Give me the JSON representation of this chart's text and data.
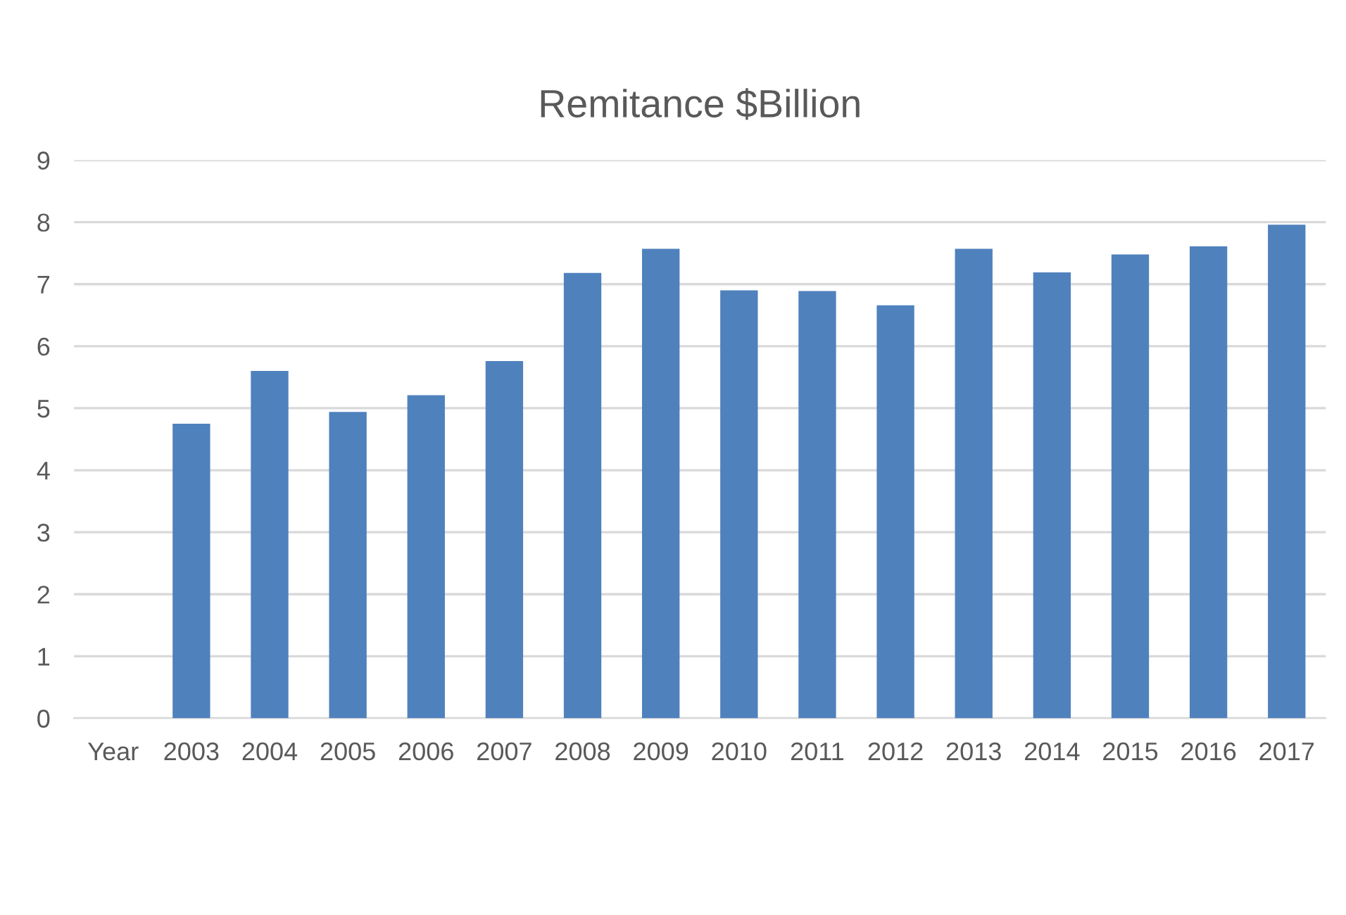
{
  "chart_data": {
    "type": "bar",
    "title": "Remitance $Billion",
    "categories": [
      "Year",
      "2003",
      "2004",
      "2005",
      "2006",
      "2007",
      "2008",
      "2009",
      "2010",
      "2011",
      "2012",
      "2013",
      "2014",
      "2015",
      "2016",
      "2017"
    ],
    "values": [
      null,
      4.75,
      5.6,
      4.94,
      5.21,
      5.76,
      7.18,
      7.57,
      6.9,
      6.89,
      6.66,
      7.57,
      7.19,
      7.48,
      7.61,
      7.96
    ],
    "color": "#4f81bd",
    "ylim": [
      0,
      9
    ],
    "yticks": [
      0,
      1,
      2,
      3,
      4,
      5,
      6,
      7,
      8,
      9
    ],
    "grid": "y",
    "legend": false
  }
}
